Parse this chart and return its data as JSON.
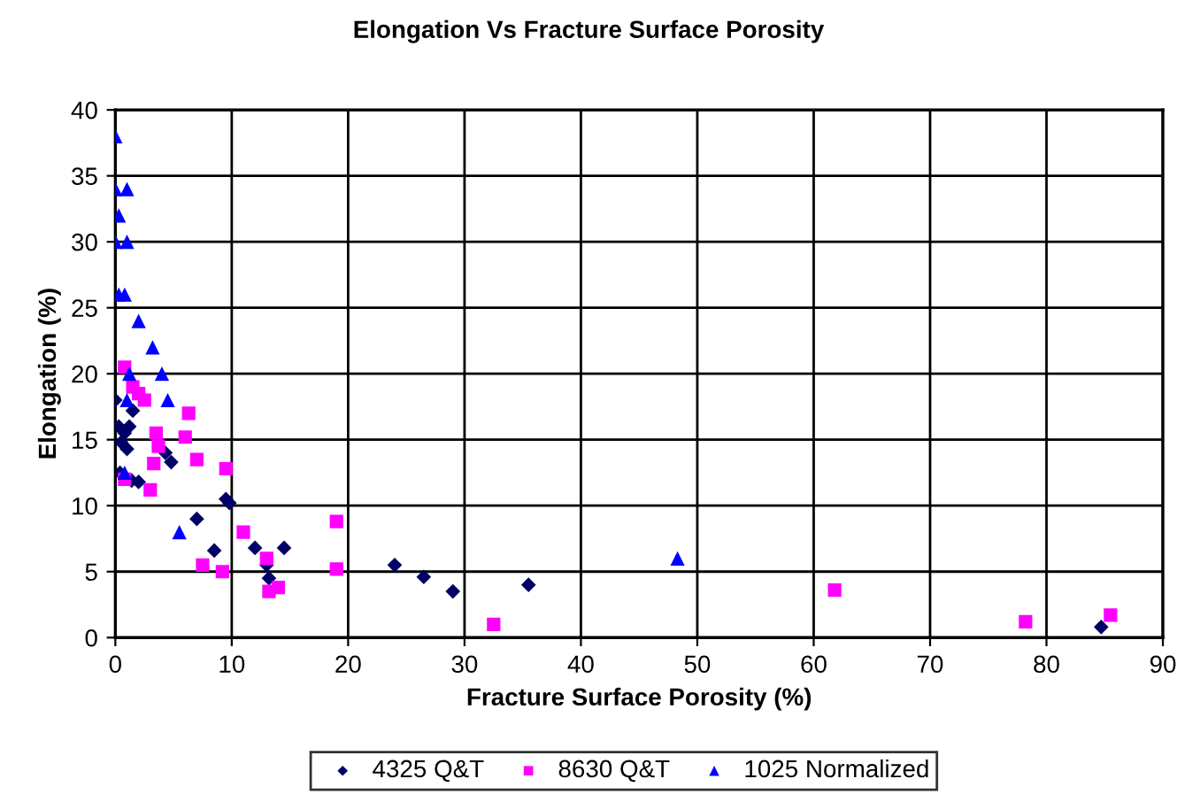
{
  "chart_data": {
    "type": "scatter",
    "title": "Elongation Vs Fracture Surface Porosity",
    "xlabel": "Fracture Surface Porosity (%)",
    "ylabel": "Elongation (%)",
    "xlim": [
      0,
      90
    ],
    "xticks": [
      0,
      10,
      20,
      30,
      40,
      50,
      60,
      70,
      80,
      90
    ],
    "ylim": [
      0,
      40
    ],
    "yticks": [
      0,
      5,
      10,
      15,
      20,
      25,
      30,
      35,
      40
    ],
    "grid": true,
    "legend": "bottom",
    "series": [
      {
        "name": "4325 Q&T",
        "color": "#000066",
        "marker": "diamond",
        "x": [
          0,
          0.3,
          0.8,
          1.2,
          0.5,
          1,
          0.4,
          1.4,
          2,
          1.5,
          4.3,
          4.8,
          7,
          8.5,
          9.5,
          9.8,
          12,
          13,
          13.2,
          14.5,
          24,
          26.5,
          29,
          35.5,
          84.7
        ],
        "values": [
          18,
          16,
          15.5,
          16,
          14.8,
          14.3,
          12.5,
          11.9,
          11.8,
          17.2,
          14,
          13.3,
          9,
          6.6,
          10.5,
          10.2,
          6.8,
          5.5,
          4.5,
          6.8,
          5.5,
          4.6,
          3.5,
          4,
          0.8
        ]
      },
      {
        "name": "8630 Q&T",
        "color": "#ff00ff",
        "marker": "square",
        "x": [
          0.8,
          1.5,
          2,
          2.5,
          6.3,
          6,
          3.5,
          3.7,
          3.3,
          7,
          9.5,
          3,
          0.8,
          11,
          19,
          13,
          7.5,
          9.2,
          13.2,
          14,
          19,
          32.5,
          61.8,
          78.2,
          85.5
        ],
        "values": [
          20.5,
          19,
          18.5,
          18,
          17,
          15.2,
          15.5,
          14.5,
          13.2,
          13.5,
          12.8,
          11.2,
          12,
          8,
          8.8,
          6,
          5.5,
          5,
          3.5,
          3.8,
          5.2,
          1,
          3.6,
          1.2,
          1.7
        ]
      },
      {
        "name": "1025 Normalized",
        "color": "#0000ff",
        "marker": "triangle",
        "x": [
          0,
          0,
          1,
          0.3,
          0,
          1,
          0.3,
          0.8,
          2,
          3.2,
          4,
          1.2,
          4.5,
          1,
          0.8,
          5.5,
          48.3
        ],
        "values": [
          38,
          34,
          34,
          32,
          30,
          30,
          26,
          26,
          24,
          22,
          20,
          20,
          18,
          18,
          12.5,
          8,
          6
        ]
      }
    ]
  }
}
